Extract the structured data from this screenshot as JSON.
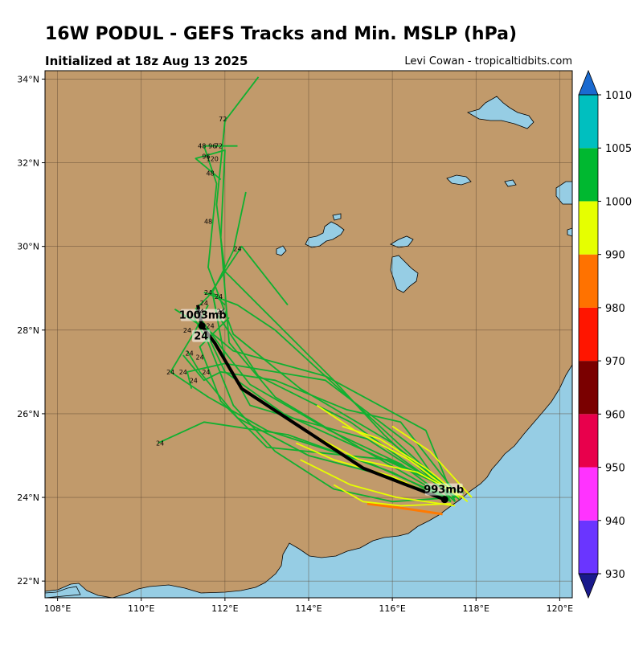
{
  "title": "16W PODUL - GEFS Tracks and Min. MSLP (hPa)",
  "subtitle": "Initialized at 18z Aug 13 2025",
  "credit": "Levi Cowan - tropicaltidbits.com",
  "colors": {
    "land": "#c19a6b",
    "ocean": "#96cde4",
    "mean_track": "#000000",
    "member_green": "#10b030",
    "member_yellow": "#e6ff00",
    "member_orange": "#ff7a00"
  },
  "axes": {
    "lon_ticks": [
      {
        "value": 108,
        "label": "108°E"
      },
      {
        "value": 110,
        "label": "110°E"
      },
      {
        "value": 112,
        "label": "112°E"
      },
      {
        "value": 114,
        "label": "114°E"
      },
      {
        "value": 116,
        "label": "116°E"
      },
      {
        "value": 118,
        "label": "118°E"
      },
      {
        "value": 120,
        "label": "120°E"
      }
    ],
    "lat_ticks": [
      {
        "value": 22,
        "label": "22°N"
      },
      {
        "value": 24,
        "label": "24°N"
      },
      {
        "value": 26,
        "label": "26°N"
      },
      {
        "value": 28,
        "label": "28°N"
      },
      {
        "value": 30,
        "label": "30°N"
      },
      {
        "value": 32,
        "label": "32°N"
      },
      {
        "value": 34,
        "label": "34°N"
      }
    ],
    "lon_range": [
      107.7,
      120.3
    ],
    "lat_range": [
      21.6,
      34.2
    ]
  },
  "colorbar": {
    "levels": [
      {
        "value": 930,
        "label": "930",
        "color": "#6a35ff"
      },
      {
        "value": 940,
        "label": "940",
        "color": "#ff33ff"
      },
      {
        "value": 950,
        "label": "950",
        "color": "#e8004c"
      },
      {
        "value": 960,
        "label": "960",
        "color": "#7a0000"
      },
      {
        "value": 970,
        "label": "970",
        "color": "#ff1500"
      },
      {
        "value": 980,
        "label": "980",
        "color": "#ff7200"
      },
      {
        "value": 990,
        "label": "990",
        "color": "#e6ff00"
      },
      {
        "value": 1000,
        "label": "1000",
        "color": "#00b830"
      },
      {
        "value": 1005,
        "label": "1005",
        "color": "#00bfbf"
      },
      {
        "value": 1010,
        "label": "1010",
        "color": "#1060c0"
      }
    ],
    "under_color": "#1a1a8c",
    "over_color": "#1a6ad0"
  },
  "mean_track": {
    "points": [
      [
        117.25,
        23.95
      ],
      [
        115.3,
        24.7
      ],
      [
        112.4,
        26.6
      ],
      [
        111.75,
        27.7
      ],
      [
        111.45,
        28.1
      ],
      [
        111.35,
        28.6
      ]
    ],
    "start_label": "993mb",
    "end_label": "1003mb",
    "hour_label": "24"
  },
  "member_tracks": [
    {
      "color": "green",
      "points": [
        [
          117.4,
          23.9
        ],
        [
          116.2,
          24.8
        ],
        [
          114.5,
          25.6
        ],
        [
          112.6,
          26.7
        ],
        [
          111.9,
          27.6
        ],
        [
          111.4,
          28.3
        ]
      ]
    },
    {
      "color": "green",
      "points": [
        [
          117.6,
          24.0
        ],
        [
          116.0,
          25.3
        ],
        [
          113.8,
          26.6
        ],
        [
          112.2,
          27.9
        ],
        [
          111.6,
          29.5
        ],
        [
          111.8,
          31.5
        ],
        [
          111.5,
          32.4
        ],
        [
          112.3,
          32.4
        ]
      ]
    },
    {
      "color": "green",
      "points": [
        [
          117.5,
          23.9
        ],
        [
          115.8,
          25.5
        ],
        [
          114.6,
          26.8
        ],
        [
          113.2,
          28.2
        ],
        [
          112.0,
          29.4
        ],
        [
          111.8,
          31.0
        ],
        [
          112.0,
          33.0
        ],
        [
          112.8,
          34.05
        ]
      ]
    },
    {
      "color": "green",
      "points": [
        [
          117.3,
          24.0
        ],
        [
          115.5,
          24.8
        ],
        [
          113.0,
          25.6
        ],
        [
          111.6,
          26.4
        ],
        [
          110.7,
          27.0
        ],
        [
          111.3,
          28.0
        ],
        [
          111.6,
          28.6
        ]
      ]
    },
    {
      "color": "green",
      "points": [
        [
          117.4,
          23.9
        ],
        [
          116.0,
          24.6
        ],
        [
          113.5,
          25.5
        ],
        [
          111.5,
          25.8
        ],
        [
          110.4,
          25.3
        ]
      ]
    },
    {
      "color": "green",
      "points": [
        [
          117.6,
          24.1
        ],
        [
          115.6,
          25.0
        ],
        [
          113.4,
          26.0
        ],
        [
          112.0,
          27.0
        ],
        [
          111.3,
          28.5
        ],
        [
          111.6,
          28.8
        ],
        [
          112.4,
          30.0
        ],
        [
          113.5,
          28.6
        ]
      ]
    },
    {
      "color": "green",
      "points": [
        [
          117.4,
          23.9
        ],
        [
          116.5,
          25.2
        ],
        [
          114.4,
          26.8
        ],
        [
          112.0,
          27.2
        ],
        [
          111.1,
          27.0
        ],
        [
          111.2,
          26.6
        ]
      ]
    },
    {
      "color": "green",
      "points": [
        [
          117.5,
          24.0
        ],
        [
          115.0,
          25.8
        ],
        [
          112.8,
          26.9
        ],
        [
          111.8,
          28.4
        ],
        [
          111.7,
          28.9
        ],
        [
          112.0,
          28.6
        ]
      ]
    },
    {
      "color": "green",
      "points": [
        [
          117.7,
          24.1
        ],
        [
          115.9,
          24.9
        ],
        [
          113.0,
          25.2
        ],
        [
          111.9,
          26.3
        ],
        [
          111.4,
          27.6
        ],
        [
          112.1,
          28.3
        ]
      ]
    },
    {
      "color": "green",
      "points": [
        [
          117.5,
          23.9
        ],
        [
          116.8,
          25.6
        ],
        [
          114.4,
          26.9
        ],
        [
          112.2,
          27.5
        ],
        [
          111.6,
          28.0
        ],
        [
          110.8,
          28.5
        ]
      ]
    },
    {
      "color": "green",
      "points": [
        [
          117.3,
          24.0
        ],
        [
          115.2,
          25.2
        ],
        [
          113.2,
          26.4
        ],
        [
          112.1,
          27.7
        ],
        [
          111.9,
          30.2
        ],
        [
          112.0,
          32.3
        ],
        [
          111.3,
          32.1
        ],
        [
          111.9,
          31.6
        ]
      ]
    },
    {
      "color": "green",
      "points": [
        [
          117.6,
          24.0
        ],
        [
          116.2,
          25.8
        ],
        [
          114.9,
          26.1
        ],
        [
          113.2,
          26.8
        ],
        [
          111.9,
          27.0
        ],
        [
          111.5,
          26.8
        ],
        [
          111.0,
          27.4
        ]
      ]
    },
    {
      "color": "green",
      "points": [
        [
          117.4,
          24.1
        ],
        [
          115.4,
          25.4
        ],
        [
          113.6,
          25.9
        ],
        [
          112.6,
          26.2
        ],
        [
          112.0,
          27.3
        ],
        [
          111.7,
          28.9
        ],
        [
          112.2,
          29.9
        ],
        [
          112.5,
          31.3
        ]
      ]
    },
    {
      "color": "green",
      "points": [
        [
          117.5,
          24.0
        ],
        [
          116.0,
          23.9
        ],
        [
          114.6,
          24.2
        ],
        [
          113.2,
          25.1
        ],
        [
          112.2,
          26.2
        ],
        [
          111.6,
          27.7
        ],
        [
          111.2,
          28.4
        ]
      ]
    },
    {
      "color": "green",
      "points": [
        [
          117.2,
          24.0
        ],
        [
          115.9,
          24.5
        ],
        [
          114.0,
          25.0
        ],
        [
          112.3,
          25.9
        ],
        [
          111.4,
          27.0
        ],
        [
          111.1,
          27.5
        ]
      ]
    },
    {
      "color": "green",
      "points": [
        [
          117.6,
          23.95
        ],
        [
          114.4,
          26.9
        ],
        [
          113.2,
          28.0
        ],
        [
          112.3,
          28.6
        ],
        [
          111.5,
          28.9
        ]
      ]
    },
    {
      "color": "yellow",
      "points": [
        [
          117.3,
          23.9
        ],
        [
          116.0,
          24.5
        ],
        [
          114.6,
          24.9
        ],
        [
          113.7,
          25.3
        ]
      ]
    },
    {
      "color": "yellow",
      "points": [
        [
          117.6,
          24.0
        ],
        [
          116.4,
          24.9
        ],
        [
          115.1,
          25.6
        ],
        [
          114.2,
          26.2
        ]
      ]
    },
    {
      "color": "yellow",
      "points": [
        [
          117.8,
          23.9
        ],
        [
          116.8,
          24.7
        ],
        [
          115.7,
          25.4
        ],
        [
          114.8,
          25.7
        ]
      ]
    },
    {
      "color": "yellow",
      "points": [
        [
          117.5,
          23.8
        ],
        [
          116.1,
          24.0
        ],
        [
          115.0,
          24.3
        ],
        [
          113.8,
          24.9
        ]
      ]
    },
    {
      "color": "yellow",
      "points": [
        [
          117.7,
          24.0
        ],
        [
          116.6,
          24.6
        ],
        [
          115.2,
          24.9
        ],
        [
          114.1,
          25.5
        ]
      ]
    },
    {
      "color": "yellow",
      "points": [
        [
          117.9,
          24.0
        ],
        [
          116.9,
          25.1
        ],
        [
          116.0,
          25.7
        ]
      ]
    },
    {
      "color": "yellow",
      "points": [
        [
          117.4,
          23.85
        ],
        [
          116.2,
          23.8
        ],
        [
          115.3,
          23.9
        ],
        [
          114.6,
          24.3
        ]
      ]
    },
    {
      "color": "orange",
      "points": [
        [
          117.2,
          23.6
        ],
        [
          116.2,
          23.75
        ],
        [
          115.4,
          23.85
        ]
      ]
    }
  ],
  "hour_labels": [
    {
      "text": "72",
      "lon": 111.95,
      "lat": 33.05
    },
    {
      "text": "48",
      "lon": 111.45,
      "lat": 32.4
    },
    {
      "text": "96",
      "lon": 111.7,
      "lat": 32.4
    },
    {
      "text": "72",
      "lon": 111.85,
      "lat": 32.4
    },
    {
      "text": "96",
      "lon": 111.55,
      "lat": 32.15
    },
    {
      "text": "120",
      "lon": 111.7,
      "lat": 32.1
    },
    {
      "text": "48",
      "lon": 111.65,
      "lat": 31.75
    },
    {
      "text": "48",
      "lon": 111.6,
      "lat": 30.6
    },
    {
      "text": "24",
      "lon": 112.3,
      "lat": 29.95
    },
    {
      "text": "24",
      "lon": 111.6,
      "lat": 28.9
    },
    {
      "text": "24",
      "lon": 111.85,
      "lat": 28.8
    },
    {
      "text": "24",
      "lon": 111.5,
      "lat": 28.65
    },
    {
      "text": "24",
      "lon": 111.4,
      "lat": 28.45
    },
    {
      "text": "24",
      "lon": 111.9,
      "lat": 28.45
    },
    {
      "text": "24",
      "lon": 111.65,
      "lat": 28.1
    },
    {
      "text": "24",
      "lon": 111.1,
      "lat": 28.0
    },
    {
      "text": "24",
      "lon": 111.15,
      "lat": 27.45
    },
    {
      "text": "24",
      "lon": 111.4,
      "lat": 27.35
    },
    {
      "text": "24",
      "lon": 110.7,
      "lat": 27.0
    },
    {
      "text": "24",
      "lon": 111.0,
      "lat": 27.0
    },
    {
      "text": "24",
      "lon": 111.55,
      "lat": 27.0
    },
    {
      "text": "24",
      "lon": 111.25,
      "lat": 26.8
    },
    {
      "text": "24",
      "lon": 110.45,
      "lat": 25.3
    }
  ]
}
